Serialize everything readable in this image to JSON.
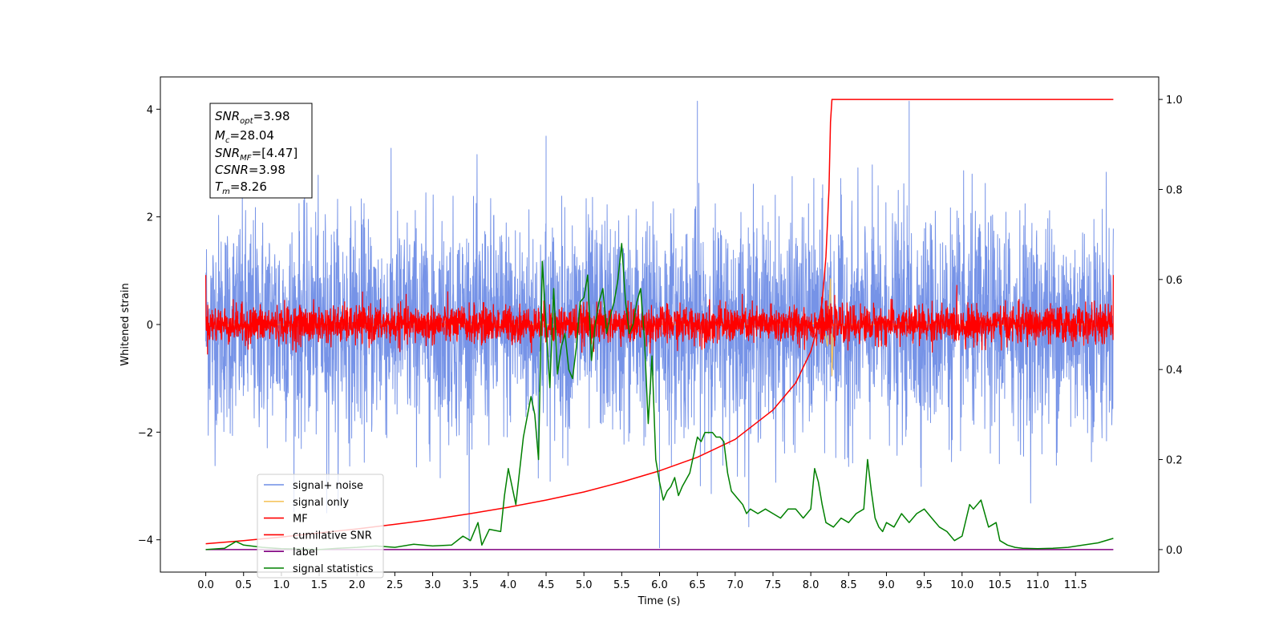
{
  "chart_data": {
    "type": "line",
    "xlabel": "Time (s)",
    "ylabel": "Whitened strain",
    "xlim": [
      -0.6,
      12.6
    ],
    "ylim_left": [
      -4.6,
      4.6
    ],
    "ylim_right": [
      -0.05,
      1.05
    ],
    "x_ticks": [
      0.0,
      0.5,
      1.0,
      1.5,
      2.0,
      2.5,
      3.0,
      3.5,
      4.0,
      4.5,
      5.0,
      5.5,
      6.0,
      6.5,
      7.0,
      7.5,
      8.0,
      8.5,
      9.0,
      9.5,
      10.0,
      10.5,
      11.0,
      11.5
    ],
    "x_tick_labels": [
      "0.0",
      "0.5",
      "1.0",
      "1.5",
      "2.0",
      "2.5",
      "3.0",
      "3.5",
      "4.0",
      "4.5",
      "5.0",
      "5.5",
      "6.0",
      "6.5",
      "7.0",
      "7.5",
      "8.0",
      "8.5",
      "9.0",
      "9.5",
      "10.0",
      "10.5",
      "11.0",
      "11.5"
    ],
    "y_left_ticks": [
      -4,
      -2,
      0,
      2,
      4
    ],
    "y_left_tick_labels": [
      "−4",
      "−2",
      "0",
      "2",
      "4"
    ],
    "y_right_ticks": [
      0.0,
      0.2,
      0.4,
      0.6,
      0.8,
      1.0
    ],
    "y_right_tick_labels": [
      "0.0",
      "0.2",
      "0.4",
      "0.6",
      "0.8",
      "1.0"
    ],
    "grid": false,
    "legend": {
      "placement": "lower-left",
      "entries": [
        {
          "label": "signal+ noise",
          "color": "#6f8de6"
        },
        {
          "label": "signal only",
          "color": "#f5c560"
        },
        {
          "label": "MF",
          "color": "#ff0000"
        },
        {
          "label": "cumilative SNR",
          "color": "#ff0000"
        },
        {
          "label": "label",
          "color": "#800080"
        },
        {
          "label": "signal statistics",
          "color": "#008000"
        }
      ]
    },
    "annotation": {
      "snr_opt": {
        "base": "SNR",
        "sub": "opt",
        "value": "=3.98"
      },
      "mc": {
        "base": "M",
        "sub": "c",
        "value": "=28.04"
      },
      "snr_mf": {
        "base": "SNR",
        "sub": "MF",
        "value": "=[4.47]"
      },
      "csnr": {
        "base": "CSNR",
        "sub": "",
        "value": "=3.98"
      },
      "tm": {
        "base": "T",
        "sub": "m",
        "value": "=8.26"
      }
    },
    "series": [
      {
        "name": "signal+ noise",
        "axis": "left",
        "color": "#6f8de6",
        "x_range": [
          0.0,
          12.0
        ],
        "envelope": {
          "typical_max": 2.2,
          "typical_min": -2.2,
          "peak_max": 4.15,
          "peak_min": -4.15
        },
        "description_points": [
          [
            4.5,
            3.5
          ],
          [
            6.5,
            4.15
          ],
          [
            9.3,
            4.15
          ],
          [
            6.0,
            -4.15
          ],
          [
            1.6,
            -3.5
          ]
        ]
      },
      {
        "name": "signal only",
        "axis": "left",
        "color": "#f5c560",
        "x": [
          0.0,
          8.0,
          8.15,
          8.22,
          8.26,
          8.28,
          8.3,
          12.0
        ],
        "y": [
          0.0,
          0.0,
          0.1,
          -0.4,
          0.85,
          -0.95,
          0.0,
          0.0
        ]
      },
      {
        "name": "MF",
        "axis": "left",
        "color": "#ff0000",
        "x_range": [
          0.0,
          12.0
        ],
        "envelope": {
          "typical_max": 0.45,
          "typical_min": -0.4,
          "peak_max": 0.95,
          "peak_min": -0.55
        }
      },
      {
        "name": "cumilative SNR",
        "axis": "right",
        "color": "#ff0000",
        "x": [
          0.0,
          0.5,
          1.0,
          1.5,
          2.0,
          2.5,
          3.0,
          3.5,
          4.0,
          4.5,
          5.0,
          5.5,
          6.0,
          6.5,
          7.0,
          7.5,
          7.8,
          8.0,
          8.1,
          8.15,
          8.2,
          8.24,
          8.26,
          8.28,
          9.0,
          10.0,
          11.0,
          12.0
        ],
        "y": [
          0.013,
          0.02,
          0.028,
          0.037,
          0.046,
          0.056,
          0.067,
          0.08,
          0.094,
          0.11,
          0.128,
          0.15,
          0.175,
          0.205,
          0.245,
          0.31,
          0.37,
          0.44,
          0.5,
          0.55,
          0.65,
          0.8,
          0.95,
          1.0,
          1.0,
          1.0,
          1.0,
          1.0
        ]
      },
      {
        "name": "label",
        "axis": "right",
        "color": "#800080",
        "x": [
          0.0,
          12.0
        ],
        "y": [
          0.0,
          0.0
        ]
      },
      {
        "name": "signal statistics",
        "axis": "right",
        "color": "#008000",
        "x": [
          0.0,
          0.25,
          0.4,
          0.5,
          0.75,
          1.0,
          1.25,
          1.5,
          1.75,
          2.0,
          2.25,
          2.5,
          2.75,
          3.0,
          3.25,
          3.4,
          3.5,
          3.6,
          3.65,
          3.75,
          3.9,
          3.95,
          4.0,
          4.05,
          4.1,
          4.2,
          4.3,
          4.35,
          4.4,
          4.45,
          4.5,
          4.55,
          4.6,
          4.65,
          4.7,
          4.75,
          4.8,
          4.85,
          4.9,
          4.95,
          5.0,
          5.05,
          5.1,
          5.15,
          5.2,
          5.25,
          5.3,
          5.35,
          5.4,
          5.45,
          5.5,
          5.55,
          5.6,
          5.65,
          5.7,
          5.75,
          5.8,
          5.85,
          5.9,
          5.95,
          6.0,
          6.05,
          6.1,
          6.15,
          6.2,
          6.25,
          6.3,
          6.4,
          6.5,
          6.55,
          6.6,
          6.7,
          6.75,
          6.8,
          6.85,
          6.9,
          6.95,
          7.0,
          7.05,
          7.1,
          7.15,
          7.2,
          7.3,
          7.4,
          7.5,
          7.6,
          7.7,
          7.8,
          7.9,
          8.0,
          8.05,
          8.1,
          8.15,
          8.2,
          8.3,
          8.4,
          8.5,
          8.6,
          8.7,
          8.75,
          8.8,
          8.85,
          8.9,
          8.95,
          9.0,
          9.1,
          9.2,
          9.3,
          9.4,
          9.5,
          9.6,
          9.7,
          9.8,
          9.9,
          10.0,
          10.1,
          10.15,
          10.25,
          10.3,
          10.35,
          10.45,
          10.5,
          10.6,
          10.7,
          10.8,
          11.0,
          11.2,
          11.4,
          11.6,
          11.8,
          12.0
        ],
        "y": [
          0.0,
          0.003,
          0.018,
          0.01,
          0.005,
          0.002,
          0.001,
          0.0,
          0.003,
          0.005,
          0.008,
          0.005,
          0.012,
          0.008,
          0.01,
          0.03,
          0.02,
          0.06,
          0.01,
          0.045,
          0.04,
          0.12,
          0.18,
          0.14,
          0.1,
          0.25,
          0.34,
          0.3,
          0.2,
          0.64,
          0.5,
          0.36,
          0.58,
          0.39,
          0.45,
          0.48,
          0.4,
          0.38,
          0.45,
          0.55,
          0.56,
          0.61,
          0.42,
          0.5,
          0.55,
          0.58,
          0.48,
          0.52,
          0.55,
          0.6,
          0.68,
          0.55,
          0.48,
          0.5,
          0.55,
          0.58,
          0.47,
          0.28,
          0.43,
          0.2,
          0.15,
          0.11,
          0.13,
          0.14,
          0.16,
          0.12,
          0.14,
          0.17,
          0.25,
          0.24,
          0.26,
          0.26,
          0.25,
          0.25,
          0.24,
          0.17,
          0.13,
          0.12,
          0.11,
          0.1,
          0.08,
          0.09,
          0.08,
          0.09,
          0.08,
          0.07,
          0.09,
          0.09,
          0.07,
          0.09,
          0.18,
          0.15,
          0.1,
          0.06,
          0.05,
          0.07,
          0.06,
          0.08,
          0.09,
          0.2,
          0.13,
          0.07,
          0.05,
          0.04,
          0.06,
          0.05,
          0.08,
          0.06,
          0.08,
          0.09,
          0.07,
          0.05,
          0.04,
          0.02,
          0.03,
          0.1,
          0.09,
          0.11,
          0.08,
          0.05,
          0.06,
          0.02,
          0.01,
          0.005,
          0.003,
          0.002,
          0.003,
          0.005,
          0.01,
          0.015,
          0.025
        ]
      }
    ]
  }
}
